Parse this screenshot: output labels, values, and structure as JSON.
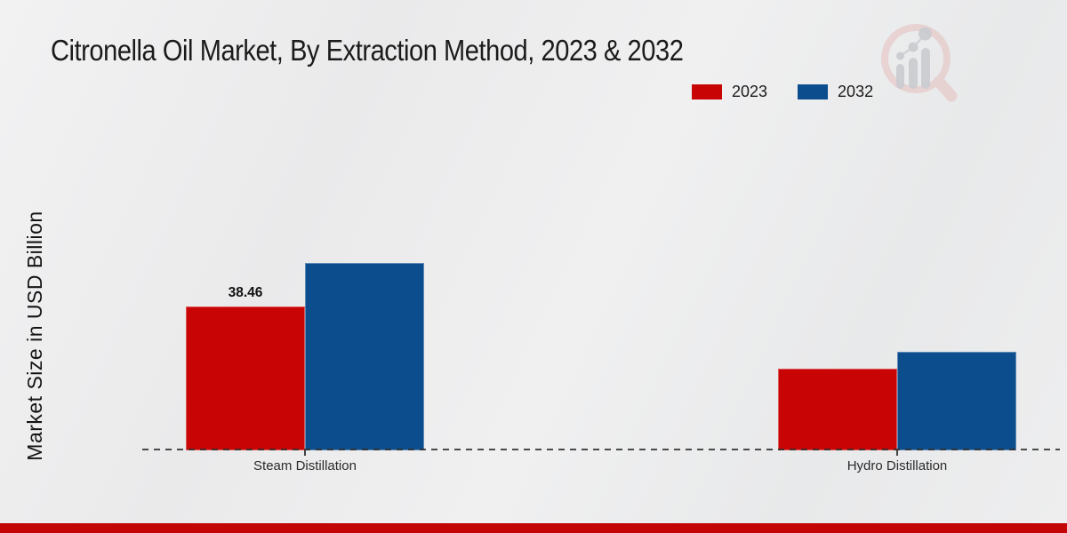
{
  "chart_data": {
    "type": "bar",
    "title": "Citronella Oil Market, By Extraction Method, 2023 & 2032",
    "xlabel": "",
    "ylabel": "Market Size in USD Billion",
    "categories": [
      "Steam Distillation",
      "Hydro Distillation"
    ],
    "series": [
      {
        "name": "2023",
        "color": "#c90404",
        "values": [
          38.46,
          21.8
        ]
      },
      {
        "name": "2032",
        "color": "#0c4d8d",
        "values": [
          50.1,
          26.4
        ]
      }
    ],
    "data_labels": [
      {
        "series": "2023",
        "category": "Steam Distillation",
        "text": "38.46"
      }
    ],
    "ylim": [
      0,
      55
    ],
    "grid": false,
    "legend_position": "top-right",
    "baseline_style": "dashed",
    "note": "Only the 38.46 value is printed on the chart; the other bar values are estimated from bar heights."
  },
  "footer": {
    "bar_color": "#c30505"
  },
  "icons": {
    "watermark": "magnifier-bar-chart-logo-icon"
  }
}
